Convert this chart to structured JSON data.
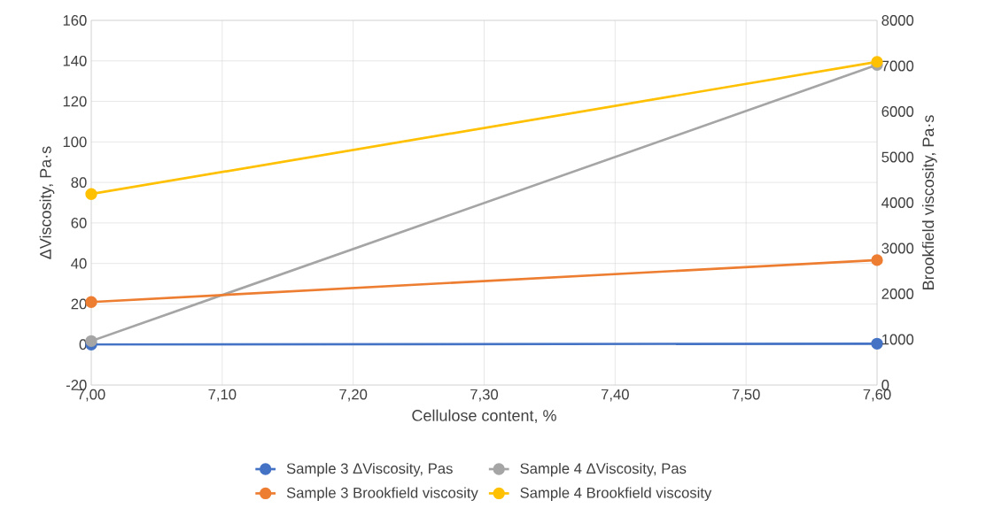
{
  "chart_data": {
    "type": "line",
    "xlabel": "Cellulose content, %",
    "ylabel": "ΔViscosity, Pa·s",
    "y2label": "Brookfield viscosity, Pa·s",
    "x": [
      7.0,
      7.6
    ],
    "series": [
      {
        "name": "Sample 3 ΔViscosity, Pas",
        "color": "#4472c4",
        "values": [
          0,
          0.4
        ]
      },
      {
        "name": "Sample 4 ΔViscosity, Pas",
        "color": "#a5a5a5",
        "values": [
          1.7,
          138
        ]
      },
      {
        "name": "Sample 3 Brookfield viscosity",
        "color": "#ed7d31",
        "values": [
          1820,
          2740
        ],
        "axis": "y2"
      },
      {
        "name": "Sample 4 Brookfield viscosity",
        "color": "#ffc000",
        "values": [
          4190,
          7090
        ],
        "axis": "y2"
      }
    ],
    "xlim": [
      7.0,
      7.6
    ],
    "xticks": [
      {
        "value": 7.0,
        "label": "7,00"
      },
      {
        "value": 7.1,
        "label": "7,10"
      },
      {
        "value": 7.2,
        "label": "7,20"
      },
      {
        "value": 7.3,
        "label": "7,30"
      },
      {
        "value": 7.4,
        "label": "7,40"
      },
      {
        "value": 7.5,
        "label": "7,50"
      },
      {
        "value": 7.6,
        "label": "7,60"
      }
    ],
    "ylim": [
      -20,
      160
    ],
    "yticks": [
      -20,
      0,
      20,
      40,
      60,
      80,
      100,
      120,
      140,
      160
    ],
    "y2lim": [
      0,
      8000
    ],
    "y2ticks": [
      0,
      1000,
      2000,
      3000,
      4000,
      5000,
      6000,
      7000,
      8000
    ],
    "grid": true,
    "legend": "bottom",
    "marker": "circle",
    "line_style": "solid"
  }
}
